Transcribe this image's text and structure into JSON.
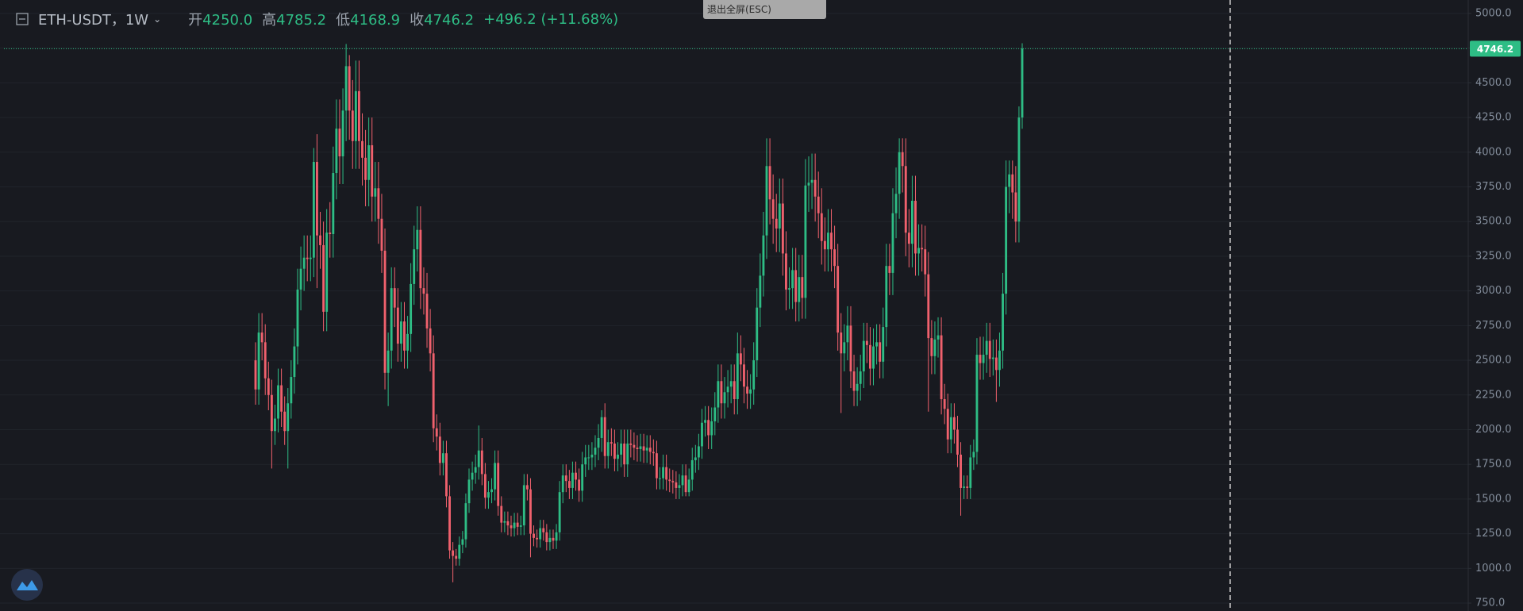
{
  "toolbar": {
    "button": "退出全屏(ESC)"
  },
  "chart_data": {
    "type": "candlestick",
    "title": "ETH-USDT，1W",
    "header_stats": [
      {
        "label": "开",
        "value": "4250.0"
      },
      {
        "label": "高",
        "value": "4785.2"
      },
      {
        "label": "低",
        "value": "4168.9"
      },
      {
        "label": "收",
        "value": "4746.2"
      }
    ],
    "change": "+496.2 (+11.68%)",
    "up_color": "#2ebd85",
    "down_color": "#f0616d",
    "grid": true,
    "ylim": [
      693,
      5097
    ],
    "yticks": [
      {
        "value": 750,
        "label": "750.0"
      },
      {
        "value": 1000,
        "label": "1000.0"
      },
      {
        "value": 1250,
        "label": "1250.0"
      },
      {
        "value": 1500,
        "label": "1500.0"
      },
      {
        "value": 1750,
        "label": "1750.0"
      },
      {
        "value": 2000,
        "label": "2000.0"
      },
      {
        "value": 2250,
        "label": "2250.0"
      },
      {
        "value": 2500,
        "label": "2500.0"
      },
      {
        "value": 2750,
        "label": "2750.0"
      },
      {
        "value": 3000,
        "label": "3000.0"
      },
      {
        "value": 3250,
        "label": "3250.0"
      },
      {
        "value": 3500,
        "label": "3500.0"
      },
      {
        "value": 3750,
        "label": "3750.0"
      },
      {
        "value": 4000,
        "label": "4000.0"
      },
      {
        "value": 4250,
        "label": "4250.0"
      },
      {
        "value": 4500,
        "label": "4500.0"
      },
      {
        "value": 4750,
        "label": "4750.0"
      },
      {
        "value": 5000,
        "label": "5000.0"
      }
    ],
    "open": [
      2500,
      2290,
      2700,
      2630,
      2370,
      2250,
      1990,
      2080,
      2320,
      2130,
      1990,
      2190,
      2380,
      2600,
      3010,
      3160,
      3240,
      3230,
      3240,
      3930,
      3400,
      3330,
      2850,
      3420,
      3410,
      3850,
      4170,
      3970,
      4300,
      4620,
      4300,
      4080,
      4440,
      4080,
      3960,
      3800,
      4050,
      3680,
      3740,
      3520,
      3290,
      2410,
      2570,
      3020,
      2880,
      2620,
      2780,
      2570,
      2690,
      3050,
      3300,
      3440,
      3020,
      2980,
      2730,
      2550,
      2010,
      1950,
      1760,
      1830,
      1520,
      1130,
      1090,
      1070,
      1170,
      1210,
      1470,
      1640,
      1690,
      1730,
      1850,
      1680,
      1510,
      1550,
      1570,
      1760,
      1450,
      1330,
      1340,
      1310,
      1290,
      1330,
      1300,
      1310,
      1600,
      1570,
      1250,
      1220,
      1210,
      1290,
      1260,
      1190,
      1220,
      1200,
      1260,
      1550,
      1670,
      1630,
      1580,
      1690,
      1640,
      1560,
      1750,
      1800,
      1800,
      1820,
      1870,
      1940,
      2090,
      1810,
      1910,
      1900,
      1790,
      1820,
      1900,
      1750,
      1900,
      1890,
      1870,
      1860,
      1880,
      1850,
      1870,
      1840,
      1830,
      1650,
      1650,
      1730,
      1640,
      1630,
      1620,
      1580,
      1600,
      1670,
      1550,
      1640,
      1780,
      1800,
      1880,
      2050,
      2070,
      1960,
      2060,
      2160,
      2350,
      2190,
      2270,
      2310,
      2350,
      2220,
      2550,
      2470,
      2310,
      2260,
      2290,
      2500,
      2880,
      3110,
      3400,
      3900,
      3660,
      3520,
      3450,
      3630,
      3270,
      3010,
      3020,
      3150,
      2920,
      3100,
      2950,
      3760,
      3780,
      3800,
      3680,
      3560,
      3360,
      3300,
      3420,
      3300,
      3180,
      2700,
      2550,
      2630,
      2750,
      2420,
      2280,
      2330,
      2420,
      2640,
      2610,
      2440,
      2600,
      2630,
      2490,
      2740,
      3180,
      3130,
      3560,
      3700,
      4000,
      3900,
      3420,
      3340,
      3650,
      3270,
      3310,
      3300,
      3120,
      2660,
      2530,
      2650,
      2680,
      2220,
      2150,
      1930,
      2090,
      2000,
      1820,
      1580,
      1590,
      1580,
      1800,
      1840,
      2540,
      2480,
      2540,
      2640,
      2510,
      2520,
      2430,
      2570,
      2980,
      3750,
      3840,
      3710,
      3500,
      4250
    ],
    "high": [
      2630,
      2840,
      2840,
      2760,
      2490,
      2360,
      2180,
      2440,
      2440,
      2240,
      2300,
      2500,
      2730,
      3160,
      3320,
      3400,
      3400,
      3400,
      4030,
      4130,
      3570,
      3500,
      3590,
      3640,
      4040,
      4380,
      4380,
      4460,
      4780,
      4700,
      4520,
      4660,
      4660,
      4280,
      4160,
      4250,
      4250,
      3930,
      3930,
      3700,
      3450,
      2700,
      3170,
      3170,
      3020,
      2920,
      2920,
      2820,
      3200,
      3470,
      3610,
      3610,
      3170,
      3130,
      2870,
      2680,
      2110,
      2050,
      1920,
      1920,
      1600,
      1190,
      1140,
      1230,
      1270,
      1540,
      1720,
      1770,
      1820,
      2030,
      1940,
      1760,
      1630,
      1650,
      1850,
      1850,
      1520,
      1410,
      1410,
      1380,
      1400,
      1400,
      1380,
      1680,
      1680,
      1650,
      1310,
      1280,
      1350,
      1350,
      1320,
      1280,
      1280,
      1320,
      1630,
      1750,
      1750,
      1710,
      1770,
      1770,
      1720,
      1840,
      1890,
      1890,
      1910,
      1960,
      2040,
      2140,
      2190,
      2000,
      2010,
      2000,
      1910,
      2000,
      2000,
      2000,
      2000,
      1980,
      1960,
      1970,
      1970,
      1960,
      1960,
      1930,
      1920,
      1730,
      1820,
      1820,
      1720,
      1710,
      1700,
      1680,
      1750,
      1750,
      1720,
      1870,
      1890,
      1970,
      2150,
      2170,
      2170,
      2160,
      2270,
      2470,
      2470,
      2380,
      2430,
      2470,
      2470,
      2700,
      2680,
      2590,
      2430,
      2400,
      2630,
      3020,
      3270,
      3570,
      4100,
      4100,
      3840,
      3700,
      3810,
      3810,
      3430,
      3170,
      3310,
      3310,
      3260,
      3260,
      3950,
      3970,
      3990,
      3990,
      3860,
      3740,
      3530,
      3590,
      3590,
      3470,
      3340,
      2840,
      2760,
      2890,
      2890,
      2540,
      2450,
      2540,
      2770,
      2770,
      2740,
      2730,
      2760,
      2760,
      2880,
      3340,
      3340,
      3740,
      3890,
      4100,
      4100,
      4100,
      3590,
      3830,
      3830,
      3480,
      3480,
      3470,
      3280,
      2790,
      2780,
      2810,
      2810,
      2330,
      2260,
      2190,
      2190,
      2100,
      1910,
      1670,
      1670,
      1890,
      1930,
      2660,
      2670,
      2670,
      2770,
      2770,
      2650,
      2650,
      2700,
      3130,
      3940,
      3940,
      3940,
      3900,
      4330,
      4785.2
    ],
    "low": [
      2180,
      2180,
      2500,
      2250,
      2140,
      1720,
      1890,
      1980,
      2020,
      1890,
      1720,
      2080,
      2260,
      2470,
      2860,
      3000,
      3070,
      3070,
      3100,
      3020,
      3160,
      2710,
      2710,
      3240,
      3240,
      3660,
      3770,
      3770,
      4080,
      4090,
      3880,
      3880,
      3880,
      3760,
      3610,
      3610,
      3500,
      3500,
      3340,
      3130,
      2290,
      2170,
      2440,
      2740,
      2490,
      2490,
      2440,
      2440,
      2560,
      2900,
      3140,
      2870,
      2830,
      2590,
      2420,
      1910,
      1850,
      1670,
      1670,
      1440,
      1070,
      900,
      1020,
      1020,
      1110,
      1150,
      1400,
      1560,
      1610,
      1640,
      1600,
      1430,
      1430,
      1470,
      1490,
      1380,
      1260,
      1260,
      1240,
      1230,
      1230,
      1240,
      1240,
      1240,
      1490,
      1080,
      1160,
      1150,
      1150,
      1200,
      1130,
      1130,
      1140,
      1140,
      1200,
      1470,
      1550,
      1500,
      1500,
      1560,
      1480,
      1480,
      1660,
      1710,
      1710,
      1730,
      1780,
      1840,
      1720,
      1720,
      1810,
      1700,
      1700,
      1730,
      1660,
      1660,
      1800,
      1780,
      1770,
      1770,
      1760,
      1760,
      1750,
      1740,
      1570,
      1570,
      1570,
      1560,
      1550,
      1540,
      1500,
      1500,
      1520,
      1520,
      1520,
      1560,
      1690,
      1710,
      1790,
      1950,
      1860,
      1860,
      1960,
      2050,
      2080,
      2080,
      2160,
      2190,
      2110,
      2110,
      2350,
      2190,
      2150,
      2150,
      2180,
      2380,
      2740,
      2960,
      3230,
      3480,
      3340,
      3280,
      3280,
      3110,
      2860,
      2870,
      2870,
      2780,
      2780,
      2800,
      2800,
      3570,
      3590,
      3500,
      3380,
      3190,
      3140,
      3140,
      3140,
      3020,
      2570,
      2120,
      2420,
      2500,
      2300,
      2170,
      2170,
      2210,
      2300,
      2480,
      2320,
      2320,
      2470,
      2370,
      2370,
      2600,
      2970,
      2970,
      3380,
      3520,
      3710,
      3250,
      3170,
      3170,
      3110,
      3110,
      3140,
      2960,
      2130,
      2400,
      2400,
      2520,
      2110,
      2040,
      1830,
      1830,
      1900,
      1730,
      1380,
      1500,
      1500,
      1500,
      1710,
      1750,
      2360,
      2360,
      2410,
      2380,
      2390,
      2200,
      2310,
      2440,
      2830,
      3560,
      3520,
      3350,
      3350,
      4168.9
    ],
    "close": [
      2290,
      2700,
      2630,
      2370,
      2250,
      1990,
      2080,
      2320,
      2130,
      1990,
      2190,
      2380,
      2600,
      3010,
      3160,
      3240,
      3230,
      3240,
      3930,
      3400,
      3330,
      2850,
      3420,
      3410,
      3850,
      4170,
      3970,
      4300,
      4620,
      4300,
      4080,
      4440,
      4080,
      3960,
      3800,
      4050,
      3680,
      3740,
      3520,
      3290,
      2410,
      2570,
      3020,
      2880,
      2620,
      2780,
      2570,
      2690,
      3050,
      3300,
      3440,
      3020,
      2980,
      2730,
      2550,
      2010,
      1950,
      1760,
      1830,
      1520,
      1130,
      1090,
      1070,
      1170,
      1210,
      1470,
      1640,
      1690,
      1730,
      1850,
      1680,
      1510,
      1550,
      1570,
      1760,
      1450,
      1330,
      1340,
      1310,
      1290,
      1330,
      1300,
      1310,
      1600,
      1570,
      1250,
      1220,
      1210,
      1290,
      1260,
      1190,
      1220,
      1200,
      1260,
      1550,
      1670,
      1630,
      1580,
      1690,
      1640,
      1560,
      1750,
      1800,
      1800,
      1820,
      1870,
      1940,
      2090,
      1810,
      1910,
      1900,
      1790,
      1820,
      1900,
      1750,
      1900,
      1890,
      1870,
      1860,
      1880,
      1850,
      1870,
      1840,
      1830,
      1650,
      1650,
      1730,
      1640,
      1630,
      1620,
      1580,
      1600,
      1670,
      1550,
      1640,
      1780,
      1800,
      1880,
      2050,
      2070,
      1960,
      2060,
      2160,
      2350,
      2190,
      2270,
      2310,
      2350,
      2220,
      2550,
      2470,
      2310,
      2260,
      2290,
      2500,
      2880,
      3110,
      3400,
      3900,
      3660,
      3520,
      3450,
      3630,
      3270,
      3010,
      3020,
      3150,
      2920,
      3100,
      2950,
      3760,
      3780,
      3800,
      3680,
      3560,
      3360,
      3300,
      3420,
      3300,
      3180,
      2700,
      2550,
      2630,
      2750,
      2420,
      2280,
      2330,
      2420,
      2640,
      2610,
      2440,
      2600,
      2630,
      2490,
      2740,
      3180,
      3130,
      3560,
      3700,
      4000,
      3900,
      3420,
      3340,
      3650,
      3270,
      3310,
      3300,
      3120,
      2660,
      2530,
      2650,
      2680,
      2220,
      2150,
      1930,
      2090,
      2000,
      1820,
      1580,
      1590,
      1580,
      1800,
      1840,
      2540,
      2480,
      2540,
      2640,
      2510,
      2520,
      2430,
      2570,
      2980,
      3750,
      3840,
      3710,
      3500,
      4250,
      4746.2
    ]
  }
}
